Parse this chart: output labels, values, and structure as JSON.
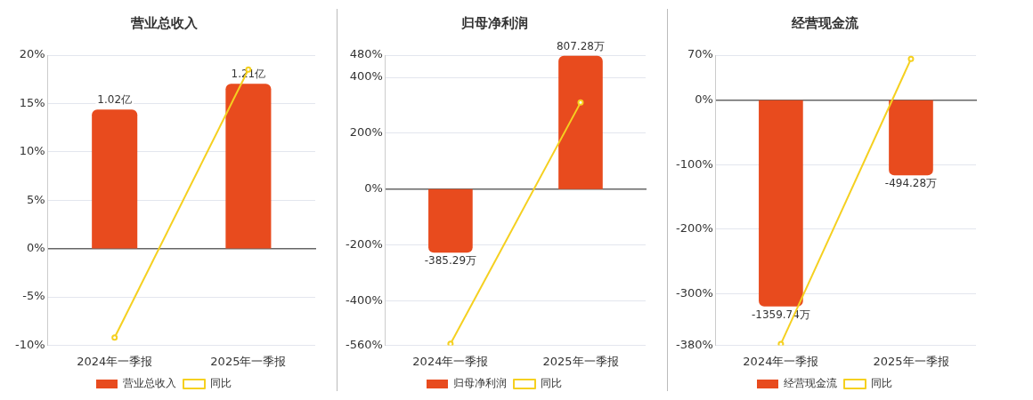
{
  "chart_data": [
    {
      "type": "bar",
      "title": "营业总收入",
      "categories": [
        "2024年一季报",
        "2025年一季报"
      ],
      "series": [
        {
          "name": "营业总收入",
          "type": "bar",
          "axis": "y2",
          "color": "#e84b1e",
          "values": [
            1.02,
            1.21
          ],
          "value_labels": [
            "1.02亿",
            "1.21亿"
          ]
        },
        {
          "name": "同比",
          "type": "line",
          "color": "#f5d020",
          "values": [
            -9.2,
            18.5
          ]
        }
      ],
      "ylim": [
        -10,
        20
      ],
      "yticks": [
        {
          "value": -10,
          "label": "-10%"
        },
        {
          "value": -5,
          "label": "-5%"
        },
        {
          "value": 0,
          "label": "0%"
        },
        {
          "value": 5,
          "label": "5%"
        },
        {
          "value": 10,
          "label": "10%"
        },
        {
          "value": 15,
          "label": "15%"
        },
        {
          "value": 20,
          "label": "20%"
        }
      ],
      "y2lim": [
        -0.71,
        1.42
      ],
      "grid": "y",
      "legend": "bottom",
      "marker": "circle"
    },
    {
      "type": "bar",
      "title": "归母净利润",
      "categories": [
        "2024年一季报",
        "2025年一季报"
      ],
      "series": [
        {
          "name": "归母净利润",
          "type": "bar",
          "axis": "y2",
          "color": "#e84b1e",
          "values": [
            -385.29,
            807.28
          ],
          "value_labels": [
            "-385.29万",
            "807.28万"
          ]
        },
        {
          "name": "同比",
          "type": "line",
          "color": "#f5d020",
          "values": [
            -555,
            310
          ]
        }
      ],
      "ylim": [
        -560,
        480
      ],
      "yticks": [
        {
          "value": -560,
          "label": "-560%"
        },
        {
          "value": -400,
          "label": "-400%"
        },
        {
          "value": -200,
          "label": "-200%"
        },
        {
          "value": 0,
          "label": "0%"
        },
        {
          "value": 200,
          "label": "200%"
        },
        {
          "value": 400,
          "label": "400%"
        },
        {
          "value": 480,
          "label": "480%"
        }
      ],
      "y2lim": [
        -946,
        811
      ],
      "grid": "y",
      "legend": "bottom",
      "marker": "circle"
    },
    {
      "type": "bar",
      "title": "经营现金流",
      "categories": [
        "2024年一季报",
        "2025年一季报"
      ],
      "series": [
        {
          "name": "经营现金流",
          "type": "bar",
          "axis": "y2",
          "color": "#e84b1e",
          "values": [
            -1359.74,
            -494.28
          ],
          "value_labels": [
            "-1359.74万",
            "-494.28万"
          ]
        },
        {
          "name": "同比",
          "type": "line",
          "color": "#f5d020",
          "values": [
            -378,
            64
          ]
        }
      ],
      "ylim": [
        -380,
        70
      ],
      "yticks": [
        {
          "value": -380,
          "label": "-380%"
        },
        {
          "value": -300,
          "label": "-300%"
        },
        {
          "value": -200,
          "label": "-200%"
        },
        {
          "value": -100,
          "label": "-100%"
        },
        {
          "value": 0,
          "label": "0%"
        },
        {
          "value": 70,
          "label": "70%"
        }
      ],
      "y2lim": [
        -1615,
        298
      ],
      "grid": "y",
      "legend": "bottom",
      "marker": "circle"
    }
  ]
}
